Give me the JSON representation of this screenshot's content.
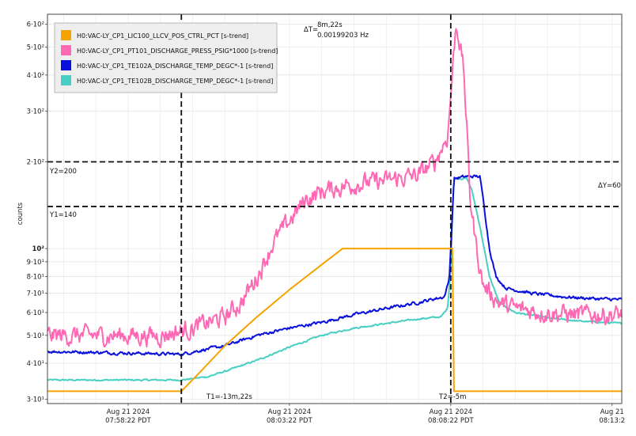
{
  "chart_data": {
    "type": "line",
    "ylabel": "counts",
    "y_scale": "log",
    "ylim": [
      29,
      650
    ],
    "grid": true,
    "legend_position": "top-left",
    "x_unit": "minutes after 07:58:22 PDT",
    "xlim": [
      -2.5,
      15.3
    ],
    "x_ticks": [
      {
        "x": 0,
        "line1": "Aug 21 2024",
        "line2": "07:58:22 PDT"
      },
      {
        "x": 5,
        "line1": "Aug 21 2024",
        "line2": "08:03:22 PDT"
      },
      {
        "x": 10,
        "line1": "Aug 21 2024",
        "line2": "08:08:22 PDT"
      },
      {
        "x": 15,
        "line1": "Aug 21",
        "line2": "08:13:2"
      }
    ],
    "y_ticks": [
      {
        "v": 30,
        "label": "3·10¹"
      },
      {
        "v": 40,
        "label": "4·10¹"
      },
      {
        "v": 50,
        "label": "5·10¹"
      },
      {
        "v": 60,
        "label": "6·10¹"
      },
      {
        "v": 70,
        "label": "7·10¹"
      },
      {
        "v": 80,
        "label": "8·10¹"
      },
      {
        "v": 90,
        "label": "9·10¹"
      },
      {
        "v": 100,
        "label": "10²",
        "bold": true
      },
      {
        "v": 200,
        "label": "2·10²"
      },
      {
        "v": 300,
        "label": "3·10²"
      },
      {
        "v": 400,
        "label": "4·10²"
      },
      {
        "v": 500,
        "label": "5·10²"
      },
      {
        "v": 600,
        "label": "6·10²"
      }
    ],
    "series": [
      {
        "name": "H0:VAC-LY_CP1_LIC100_LLCV_POS_CTRL_PCT [s-trend]",
        "color": "#f5a300",
        "noise": 0,
        "points": [
          [
            -2.5,
            32
          ],
          [
            1.65,
            32
          ],
          [
            2.3,
            38
          ],
          [
            3,
            46
          ],
          [
            4,
            58
          ],
          [
            5,
            72
          ],
          [
            6,
            88
          ],
          [
            6.65,
            100
          ],
          [
            10.05,
            100
          ],
          [
            10.1,
            32
          ],
          [
            15.3,
            32
          ]
        ]
      },
      {
        "name": "H0:VAC-LY_CP1_PT101_DISCHARGE_PRESS_PSIG*1000 [s-trend]",
        "color": "#ff69b4",
        "noise": 0.06,
        "points": [
          [
            -2.5,
            50
          ],
          [
            0,
            50
          ],
          [
            1,
            50
          ],
          [
            1.65,
            52
          ],
          [
            2,
            53
          ],
          [
            3,
            58
          ],
          [
            3.5,
            65
          ],
          [
            4,
            80
          ],
          [
            4.5,
            105
          ],
          [
            5,
            125
          ],
          [
            5.5,
            148
          ],
          [
            6,
            158
          ],
          [
            7,
            168
          ],
          [
            8,
            172
          ],
          [
            9,
            180
          ],
          [
            9.5,
            200
          ],
          [
            9.9,
            245
          ],
          [
            10,
            340
          ],
          [
            10.15,
            580
          ],
          [
            10.2,
            590
          ],
          [
            10.4,
            420
          ],
          [
            10.5,
            255
          ],
          [
            10.6,
            150
          ],
          [
            10.8,
            100
          ],
          [
            11,
            75
          ],
          [
            11.5,
            65
          ],
          [
            12,
            62
          ],
          [
            13,
            60
          ],
          [
            14,
            59
          ],
          [
            15.3,
            59
          ]
        ]
      },
      {
        "name": "H0:VAC-LY_CP1_TE102A_DISCHARGE_TEMP_DEGC*-1 [s-trend]",
        "color": "#0a10dc",
        "noise": 0.01,
        "points": [
          [
            -2.5,
            44
          ],
          [
            1.65,
            43
          ],
          [
            2.3,
            44.5
          ],
          [
            3,
            46
          ],
          [
            4,
            50
          ],
          [
            5,
            53
          ],
          [
            6,
            55.5
          ],
          [
            7,
            59
          ],
          [
            8,
            62
          ],
          [
            9,
            65
          ],
          [
            9.5,
            67
          ],
          [
            9.8,
            68
          ],
          [
            9.95,
            78
          ],
          [
            10.05,
            130
          ],
          [
            10.1,
            175
          ],
          [
            10.5,
            178
          ],
          [
            10.9,
            178
          ],
          [
            11,
            150
          ],
          [
            11.2,
            100
          ],
          [
            11.4,
            80
          ],
          [
            11.7,
            73
          ],
          [
            12.5,
            70
          ],
          [
            13.5,
            68
          ],
          [
            14.5,
            67
          ],
          [
            15.3,
            66.5
          ]
        ]
      },
      {
        "name": "H0:VAC-LY_CP1_TE102B_DISCHARGE_TEMP_DEGC*-1 [s-trend]",
        "color": "#48cfc4",
        "noise": 0.005,
        "points": [
          [
            -2.5,
            35
          ],
          [
            0,
            35
          ],
          [
            1.65,
            35
          ],
          [
            2.5,
            36
          ],
          [
            3,
            37.5
          ],
          [
            4,
            41
          ],
          [
            5,
            45.5
          ],
          [
            6,
            50
          ],
          [
            7,
            53
          ],
          [
            8,
            55
          ],
          [
            9,
            57
          ],
          [
            9.7,
            58
          ],
          [
            9.9,
            62
          ],
          [
            10,
            85
          ],
          [
            10.05,
            130
          ],
          [
            10.1,
            175
          ],
          [
            10.5,
            175
          ],
          [
            10.65,
            160
          ],
          [
            10.9,
            120
          ],
          [
            11.2,
            80
          ],
          [
            11.5,
            65
          ],
          [
            12,
            60
          ],
          [
            13,
            57.5
          ],
          [
            14,
            56
          ],
          [
            15.3,
            55
          ]
        ]
      }
    ],
    "cursors": {
      "T1_label": "T1=-13m,22s",
      "T2_label": "T2=-5m",
      "Y1_label": "Y1=140",
      "Y2_label": "Y2=200",
      "dT_symbol": "ΔT=",
      "dT_value": "8m,22s",
      "dT_freq": "0.00199203 Hz",
      "dY_label": "ΔY=60"
    }
  }
}
